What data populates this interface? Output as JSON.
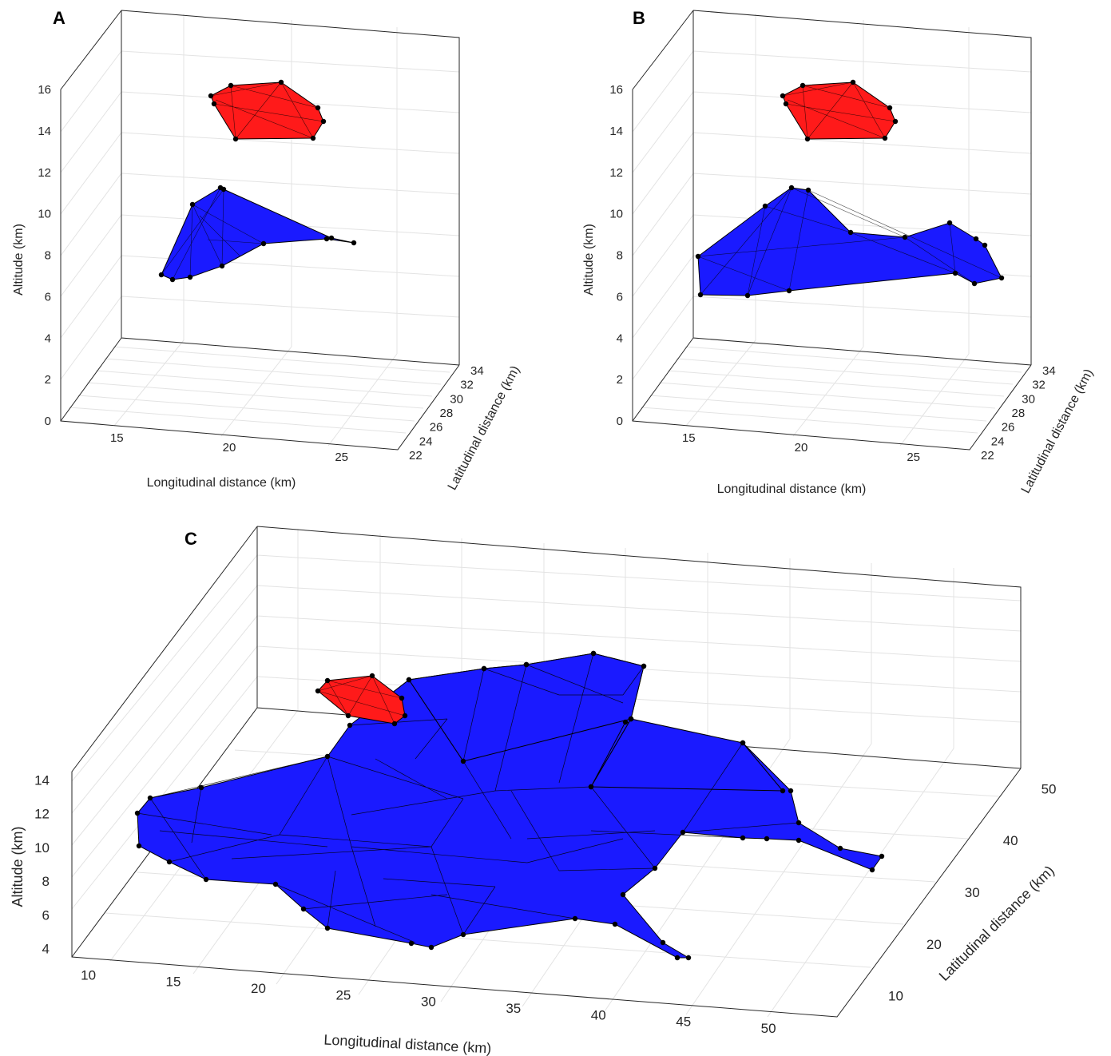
{
  "chart_data": [
    {
      "panel": "A",
      "type": "scatter3d-hull",
      "xlabel": "Longitudinal distance (km)",
      "ylabel": "Latitudinal distance (km)",
      "zlabel": "Altitude (km)",
      "xticks": [
        "15",
        "20",
        "25"
      ],
      "yticks": [
        "22",
        "24",
        "26",
        "28",
        "30",
        "32",
        "34"
      ],
      "zticks": [
        "0",
        "2",
        "4",
        "6",
        "8",
        "10",
        "12",
        "14",
        "16"
      ],
      "xlim": [
        12.5,
        27.5
      ],
      "ylim": [
        22,
        34
      ],
      "zlim": [
        0,
        16
      ],
      "hulls": [
        {
          "color": "#ff0000",
          "z_range": [
            13.7,
            16.3
          ]
        },
        {
          "color": "#0000ff",
          "z_range": [
            6.8,
            11.4
          ]
        }
      ]
    },
    {
      "panel": "B",
      "type": "scatter3d-hull",
      "xlabel": "Longitudinal distance (km)",
      "ylabel": "Latitudinal distance (km)",
      "zlabel": "Altitude (km)",
      "xticks": [
        "15",
        "20",
        "25"
      ],
      "yticks": [
        "22",
        "24",
        "26",
        "28",
        "30",
        "32",
        "34"
      ],
      "zticks": [
        "0",
        "2",
        "4",
        "6",
        "8",
        "10",
        "12",
        "14",
        "16"
      ],
      "xlim": [
        12.5,
        27.5
      ],
      "ylim": [
        22,
        34
      ],
      "zlim": [
        0,
        16
      ],
      "hulls": [
        {
          "color": "#ff0000",
          "z_range": [
            13.7,
            16.3
          ]
        },
        {
          "color": "#0000ff",
          "z_range": [
            6.0,
            11.4
          ]
        }
      ]
    },
    {
      "panel": "C",
      "type": "scatter3d-hull",
      "xlabel": "Longitudinal distance (km)",
      "ylabel": "Latitudinal distance (km)",
      "zlabel": "Altitude (km)",
      "xticks": [
        "10",
        "15",
        "20",
        "25",
        "30",
        "35",
        "40",
        "45",
        "50"
      ],
      "yticks": [
        "10",
        "20",
        "30",
        "40",
        "50"
      ],
      "zticks": [
        "4",
        "6",
        "8",
        "10",
        "12",
        "14"
      ],
      "xlim": [
        8,
        53
      ],
      "ylim": [
        5,
        53
      ],
      "zlim": [
        3.5,
        14.5
      ],
      "hulls": [
        {
          "color": "#ff0000",
          "z_range": [
            12.5,
            14.5
          ]
        },
        {
          "color": "#0000ff",
          "z_range": [
            4.0,
            14.0
          ]
        }
      ]
    }
  ]
}
